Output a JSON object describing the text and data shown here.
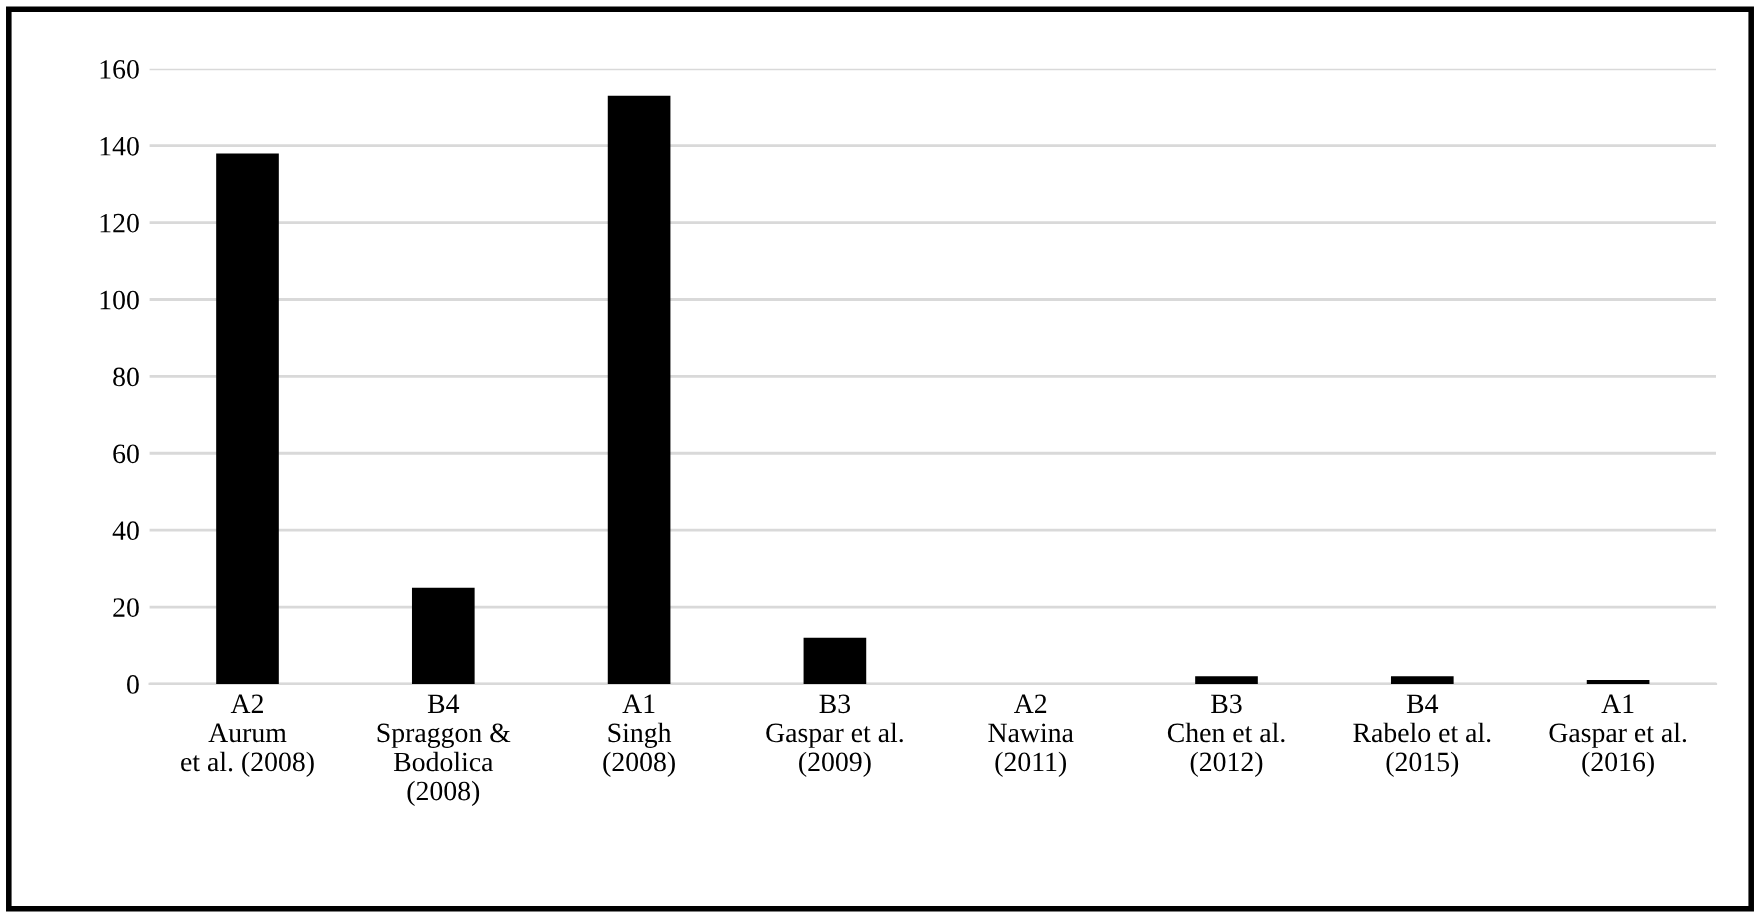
{
  "chart_data": {
    "type": "bar",
    "categories": [
      "A2\nAurum\net al. (2008)",
      "B4\nSpraggon &\nBodolica\n(2008)",
      "A1\nSingh\n(2008)",
      "B3\nGaspar et al.\n(2009)",
      "A2\nNawina\n(2011)",
      "B3\nChen et al.\n(2012)",
      "B4\nRabelo et al.\n(2015)",
      "A1\nGaspar et al.\n(2016)"
    ],
    "values": [
      138,
      25,
      153,
      12,
      0,
      2,
      2,
      1
    ],
    "color": "#000000",
    "ylim": [
      0,
      160
    ],
    "yticks": [
      0,
      20,
      40,
      60,
      80,
      100,
      120,
      140,
      160
    ],
    "grid": "y",
    "legend": false
  }
}
